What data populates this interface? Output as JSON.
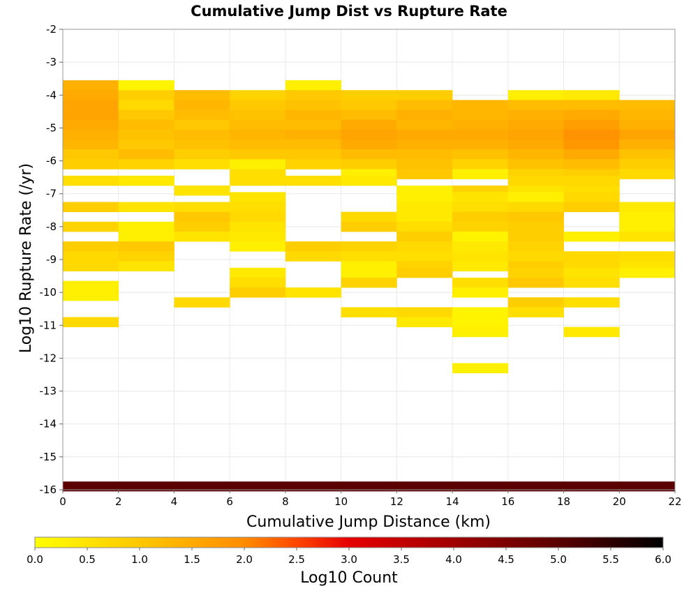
{
  "chart_data": {
    "type": "heatmap",
    "title": "Cumulative Jump Dist vs Rupture Rate",
    "xlabel": "Cumulative Jump Distance (km)",
    "ylabel": "Log10 Rupture Rate (/yr)",
    "xlim": [
      0,
      22
    ],
    "ylim": [
      -16,
      -2
    ],
    "x_ticks": [
      "0",
      "2",
      "4",
      "6",
      "8",
      "10",
      "12",
      "14",
      "16",
      "18",
      "20",
      "22"
    ],
    "y_ticks": [
      "-2",
      "-3",
      "-4",
      "-5",
      "-6",
      "-7",
      "-8",
      "-9",
      "-10",
      "-11",
      "-12",
      "-13",
      "-14",
      "-15",
      "-16"
    ],
    "grid": true,
    "x_bin_width": 2,
    "y_bin_height": 0.3,
    "colorbar": {
      "label": "Log10 Count",
      "range": [
        0,
        6
      ],
      "ticks": [
        "0.0",
        "0.5",
        "1.0",
        "1.5",
        "2.0",
        "2.5",
        "3.0",
        "3.5",
        "4.0",
        "4.5",
        "5.0",
        "5.5",
        "6.0"
      ],
      "colormap": [
        {
          "value": 0.0,
          "color": "#ffff00"
        },
        {
          "value": 1.0,
          "color": "#ffc800"
        },
        {
          "value": 2.0,
          "color": "#ff8c00"
        },
        {
          "value": 2.5,
          "color": "#ff4600"
        },
        {
          "value": 3.0,
          "color": "#e60000"
        },
        {
          "value": 4.0,
          "color": "#a00000"
        },
        {
          "value": 5.0,
          "color": "#5a0000"
        },
        {
          "value": 6.0,
          "color": "#000000"
        }
      ]
    },
    "columns": [
      {
        "x": 1,
        "cells": [
          [
            -3.7,
            1.4
          ],
          [
            -4.0,
            1.5
          ],
          [
            -4.3,
            1.6
          ],
          [
            -4.6,
            1.6
          ],
          [
            -4.9,
            1.5
          ],
          [
            -5.2,
            1.4
          ],
          [
            -5.5,
            1.3
          ],
          [
            -5.8,
            1.0
          ],
          [
            -6.1,
            0.9
          ],
          [
            -6.6,
            0.6
          ],
          [
            -7.4,
            0.9
          ],
          [
            -8.0,
            0.8
          ],
          [
            -8.6,
            0.9
          ],
          [
            -8.9,
            0.7
          ],
          [
            -9.2,
            0.7
          ],
          [
            -9.8,
            0.3
          ],
          [
            -10.1,
            0.3
          ],
          [
            -10.9,
            0.7
          ]
        ]
      },
      {
        "x": 3,
        "cells": [
          [
            -3.7,
            0.2
          ],
          [
            -4.0,
            0.9
          ],
          [
            -4.3,
            0.7
          ],
          [
            -4.6,
            1.0
          ],
          [
            -4.9,
            1.2
          ],
          [
            -5.2,
            1.1
          ],
          [
            -5.5,
            1.0
          ],
          [
            -5.8,
            1.2
          ],
          [
            -6.1,
            0.8
          ],
          [
            -6.6,
            0.4
          ],
          [
            -7.4,
            0.5
          ],
          [
            -8.0,
            0.3
          ],
          [
            -8.3,
            0.3
          ],
          [
            -8.6,
            1.0
          ],
          [
            -8.9,
            0.8
          ],
          [
            -9.2,
            0.5
          ]
        ]
      },
      {
        "x": 5,
        "cells": [
          [
            -4.0,
            1.2
          ],
          [
            -4.3,
            1.3
          ],
          [
            -4.6,
            1.2
          ],
          [
            -4.9,
            1.0
          ],
          [
            -5.2,
            1.2
          ],
          [
            -5.5,
            1.1
          ],
          [
            -5.8,
            0.9
          ],
          [
            -6.1,
            0.6
          ],
          [
            -6.9,
            0.5
          ],
          [
            -7.4,
            0.6
          ],
          [
            -7.7,
            1.0
          ],
          [
            -8.0,
            0.9
          ],
          [
            -8.3,
            0.5
          ],
          [
            -10.3,
            0.7
          ]
        ]
      },
      {
        "x": 7,
        "cells": [
          [
            -4.0,
            0.8
          ],
          [
            -4.3,
            1.0
          ],
          [
            -4.6,
            1.1
          ],
          [
            -4.9,
            1.2
          ],
          [
            -5.2,
            1.3
          ],
          [
            -5.5,
            1.2
          ],
          [
            -5.8,
            1.0
          ],
          [
            -6.1,
            0.3
          ],
          [
            -6.4,
            0.6
          ],
          [
            -6.6,
            0.6
          ],
          [
            -7.1,
            0.5
          ],
          [
            -7.4,
            0.6
          ],
          [
            -7.7,
            0.7
          ],
          [
            -8.0,
            0.5
          ],
          [
            -8.3,
            0.4
          ],
          [
            -8.6,
            0.3
          ],
          [
            -9.4,
            0.4
          ],
          [
            -9.7,
            0.6
          ],
          [
            -10.0,
            0.9
          ]
        ]
      },
      {
        "x": 9,
        "cells": [
          [
            -3.7,
            0.3
          ],
          [
            -4.0,
            1.0
          ],
          [
            -4.3,
            1.1
          ],
          [
            -4.6,
            1.3
          ],
          [
            -4.9,
            1.2
          ],
          [
            -5.2,
            1.4
          ],
          [
            -5.5,
            1.2
          ],
          [
            -5.8,
            1.0
          ],
          [
            -6.1,
            0.8
          ],
          [
            -6.6,
            0.6
          ],
          [
            -8.6,
            0.9
          ],
          [
            -8.9,
            0.7
          ],
          [
            -10.0,
            0.5
          ]
        ]
      },
      {
        "x": 11,
        "cells": [
          [
            -4.0,
            0.9
          ],
          [
            -4.3,
            1.0
          ],
          [
            -4.6,
            1.2
          ],
          [
            -4.9,
            1.5
          ],
          [
            -5.2,
            1.6
          ],
          [
            -5.5,
            1.5
          ],
          [
            -5.8,
            1.2
          ],
          [
            -6.1,
            0.9
          ],
          [
            -6.4,
            0.3
          ],
          [
            -6.6,
            0.4
          ],
          [
            -7.7,
            0.7
          ],
          [
            -8.0,
            0.9
          ],
          [
            -8.6,
            0.8
          ],
          [
            -8.9,
            0.6
          ],
          [
            -9.2,
            0.3
          ],
          [
            -9.4,
            0.3
          ],
          [
            -9.7,
            0.8
          ],
          [
            -10.6,
            0.6
          ]
        ]
      },
      {
        "x": 13,
        "cells": [
          [
            -4.0,
            0.9
          ],
          [
            -4.3,
            1.2
          ],
          [
            -4.6,
            1.4
          ],
          [
            -4.9,
            1.3
          ],
          [
            -5.2,
            1.5
          ],
          [
            -5.5,
            1.4
          ],
          [
            -5.8,
            1.2
          ],
          [
            -6.1,
            1.1
          ],
          [
            -6.4,
            1.0
          ],
          [
            -6.9,
            0.3
          ],
          [
            -7.1,
            0.3
          ],
          [
            -7.4,
            0.4
          ],
          [
            -7.7,
            0.4
          ],
          [
            -8.0,
            0.6
          ],
          [
            -8.3,
            0.9
          ],
          [
            -8.6,
            0.7
          ],
          [
            -8.9,
            0.6
          ],
          [
            -9.2,
            0.8
          ],
          [
            -9.4,
            0.9
          ],
          [
            -10.6,
            0.7
          ],
          [
            -10.9,
            0.4
          ]
        ]
      },
      {
        "x": 15,
        "cells": [
          [
            -4.3,
            1.3
          ],
          [
            -4.6,
            1.3
          ],
          [
            -4.9,
            1.4
          ],
          [
            -5.2,
            1.5
          ],
          [
            -5.5,
            1.4
          ],
          [
            -5.8,
            1.1
          ],
          [
            -6.1,
            0.8
          ],
          [
            -6.4,
            0.3
          ],
          [
            -6.9,
            0.8
          ],
          [
            -7.1,
            0.5
          ],
          [
            -7.4,
            0.6
          ],
          [
            -7.7,
            0.9
          ],
          [
            -8.0,
            0.8
          ],
          [
            -8.3,
            0.2
          ],
          [
            -8.6,
            0.4
          ],
          [
            -8.9,
            0.5
          ],
          [
            -9.2,
            0.4
          ],
          [
            -9.7,
            0.6
          ],
          [
            -10.0,
            0.3
          ],
          [
            -10.6,
            0.2
          ],
          [
            -10.9,
            0.2
          ],
          [
            -11.2,
            0.3
          ],
          [
            -12.3,
            0.3
          ]
        ]
      },
      {
        "x": 17,
        "cells": [
          [
            -4.0,
            0.3
          ],
          [
            -4.3,
            1.2
          ],
          [
            -4.6,
            1.4
          ],
          [
            -4.9,
            1.5
          ],
          [
            -5.2,
            1.6
          ],
          [
            -5.5,
            1.5
          ],
          [
            -5.8,
            1.3
          ],
          [
            -6.1,
            1.1
          ],
          [
            -6.4,
            0.8
          ],
          [
            -6.6,
            0.7
          ],
          [
            -6.9,
            0.5
          ],
          [
            -7.1,
            0.3
          ],
          [
            -7.4,
            0.7
          ],
          [
            -7.7,
            1.0
          ],
          [
            -8.0,
            0.9
          ],
          [
            -8.3,
            0.9
          ],
          [
            -8.6,
            0.8
          ],
          [
            -8.9,
            0.7
          ],
          [
            -9.2,
            0.9
          ],
          [
            -9.4,
            0.8
          ],
          [
            -9.7,
            1.0
          ],
          [
            -10.3,
            0.9
          ],
          [
            -10.6,
            0.6
          ]
        ]
      },
      {
        "x": 19,
        "cells": [
          [
            -4.0,
            0.4
          ],
          [
            -4.3,
            1.2
          ],
          [
            -4.6,
            1.5
          ],
          [
            -4.9,
            1.7
          ],
          [
            -5.2,
            1.9
          ],
          [
            -5.5,
            1.8
          ],
          [
            -5.8,
            1.5
          ],
          [
            -6.1,
            1.2
          ],
          [
            -6.4,
            0.9
          ],
          [
            -6.6,
            0.7
          ],
          [
            -6.9,
            0.6
          ],
          [
            -7.1,
            0.7
          ],
          [
            -7.4,
            0.9
          ],
          [
            -8.3,
            0.3
          ],
          [
            -8.9,
            0.7
          ],
          [
            -9.2,
            0.7
          ],
          [
            -9.4,
            0.5
          ],
          [
            -9.7,
            0.6
          ],
          [
            -10.3,
            0.6
          ],
          [
            -11.2,
            0.4
          ]
        ]
      },
      {
        "x": 21,
        "cells": [
          [
            -4.3,
            1.2
          ],
          [
            -4.6,
            1.3
          ],
          [
            -4.9,
            1.4
          ],
          [
            -5.2,
            1.6
          ],
          [
            -5.5,
            1.4
          ],
          [
            -5.8,
            1.1
          ],
          [
            -6.1,
            0.9
          ],
          [
            -6.4,
            0.7
          ],
          [
            -7.4,
            0.4
          ],
          [
            -7.7,
            0.3
          ],
          [
            -8.0,
            0.3
          ],
          [
            -8.3,
            0.5
          ],
          [
            -8.9,
            0.6
          ],
          [
            -9.2,
            0.5
          ],
          [
            -9.4,
            0.3
          ]
        ]
      }
    ],
    "bottom_row": {
      "y": -15.9,
      "x_range": [
        0,
        22
      ],
      "value": 5.0
    }
  }
}
